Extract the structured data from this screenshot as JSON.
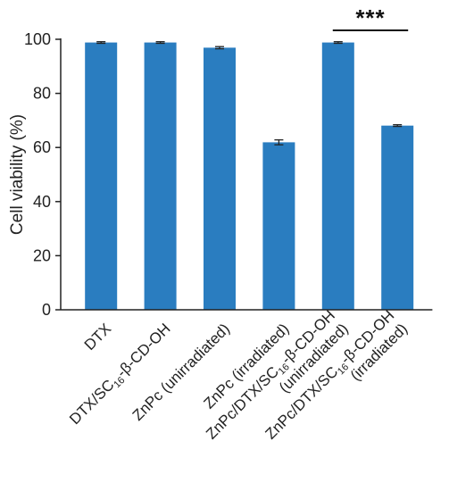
{
  "chart_data": {
    "type": "bar",
    "title": "",
    "xlabel": "",
    "ylabel": "Cell viability (%)",
    "ylim": [
      0,
      100
    ],
    "yticks": [
      0,
      20,
      40,
      60,
      80,
      100
    ],
    "grid": false,
    "bar_color": "#2a7dc0",
    "categories": [
      {
        "lines": [
          [
            {
              "t": "DTX",
              "sub": false
            }
          ]
        ]
      },
      {
        "lines": [
          [
            {
              "t": "DTX/SC",
              "sub": false
            },
            {
              "t": "16",
              "sub": true
            },
            {
              "t": "-β-CD-OH",
              "sub": false
            }
          ]
        ]
      },
      {
        "lines": [
          [
            {
              "t": "ZnPc (unirradiated)",
              "sub": false
            }
          ]
        ]
      },
      {
        "lines": [
          [
            {
              "t": "ZnPc (irradiated)",
              "sub": false
            }
          ]
        ]
      },
      {
        "lines": [
          [
            {
              "t": "ZnPc/DTX/SC",
              "sub": false
            },
            {
              "t": "16",
              "sub": true
            },
            {
              "t": "-β-CD-OH",
              "sub": false
            }
          ],
          [
            {
              "t": "(unirradiated)",
              "sub": false
            }
          ]
        ]
      },
      {
        "lines": [
          [
            {
              "t": "ZnPc/DTX/SC",
              "sub": false
            },
            {
              "t": "16",
              "sub": true
            },
            {
              "t": "-β-CD-OH",
              "sub": false
            }
          ],
          [
            {
              "t": "(irradiated)",
              "sub": false
            }
          ]
        ]
      }
    ],
    "values": [
      98.8,
      98.8,
      96.9,
      61.9,
      98.8,
      68.1
    ],
    "errors": [
      0.3,
      0.3,
      0.4,
      0.9,
      0.3,
      0.3
    ],
    "significance": {
      "from": 4,
      "to": 5,
      "label": "***"
    }
  }
}
